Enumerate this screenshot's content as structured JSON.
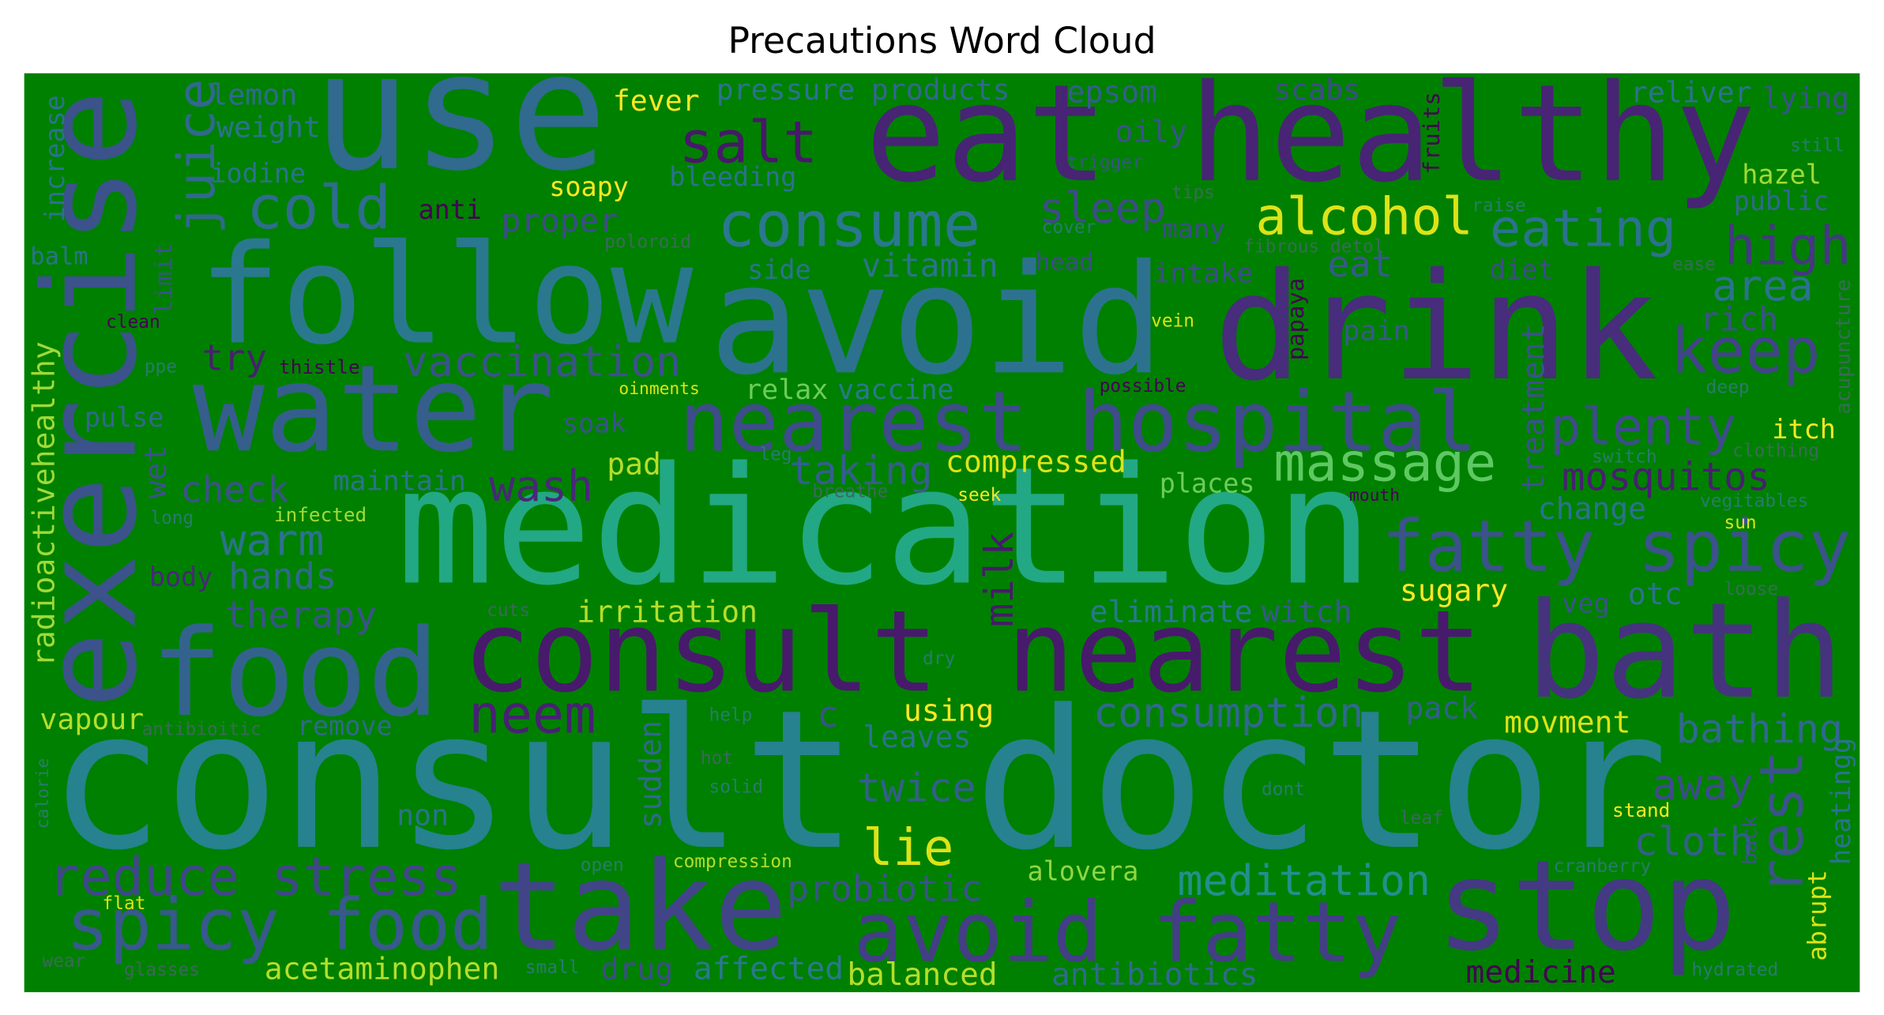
{
  "chart_data": {
    "type": "wordcloud",
    "title": "Precautions Word Cloud",
    "words": [
      "consult doctor",
      "medication",
      "consult nearest",
      "bath",
      "eat healthy",
      "drink",
      "avoid",
      "follow",
      "use",
      "water",
      "food",
      "take",
      "stop",
      "exercise",
      "nearest hospital",
      "fatty spicy",
      "avoid fatty",
      "spicy food",
      "reduce stress",
      "consume",
      "salt",
      "cold",
      "juice",
      "sleep",
      "alcohol",
      "eating",
      "high",
      "keep",
      "plenty",
      "area",
      "rich",
      "massage",
      "mosquitos",
      "change",
      "rest",
      "cloth",
      "away",
      "bathing",
      "movment",
      "sugary",
      "veg",
      "otc",
      "meditation",
      "medicine",
      "balanced",
      "affected",
      "acetaminophen",
      "drug",
      "antibiotics",
      "probiotic",
      "alovera",
      "lie",
      "twice",
      "c",
      "neem",
      "using",
      "leaves",
      "consumption",
      "pack",
      "irritation",
      "milk",
      "eliminate",
      "witch",
      "taking",
      "compressed",
      "pad",
      "soak",
      "wash",
      "relax",
      "vaccine",
      "vaccination",
      "try",
      "vitamin",
      "proper",
      "soapy",
      "fever",
      "pressure",
      "products",
      "epsom",
      "oily",
      "scabs",
      "reliver",
      "lying",
      "lemon",
      "weight",
      "iodine",
      "increase",
      "balm",
      "limit",
      "anti",
      "bleeding",
      "hazel",
      "public",
      "intake",
      "eat",
      "diet",
      "pain",
      "head",
      "side",
      "many",
      "itch",
      "check",
      "warm",
      "hands",
      "therapy",
      "body",
      "pulse",
      "maintain",
      "radioactivehealthy",
      "wet",
      "vapour",
      "remove",
      "non",
      "sudden",
      "places",
      "treatment",
      "abrupt",
      "heatingg",
      "stand",
      "back",
      "infected",
      "oinments",
      "thistle",
      "papaya",
      "possible",
      "vein",
      "compression",
      "seek",
      "sun",
      "fruits",
      "trigger",
      "flat",
      "clean",
      "mouth",
      "still",
      "raise",
      "cover",
      "poloroid",
      "ppe",
      "long",
      "antibioitic",
      "calorie",
      "wear",
      "glasses",
      "small",
      "open",
      "help",
      "hot",
      "solid",
      "cuts",
      "dry",
      "leg",
      "breathe",
      "dont",
      "leaf",
      "switch",
      "clothing",
      "vegitables",
      "loose",
      "deep",
      "ease",
      "hydrated",
      "cranberry",
      "acupuncture",
      "tips",
      "fibrous detol"
    ]
  }
}
